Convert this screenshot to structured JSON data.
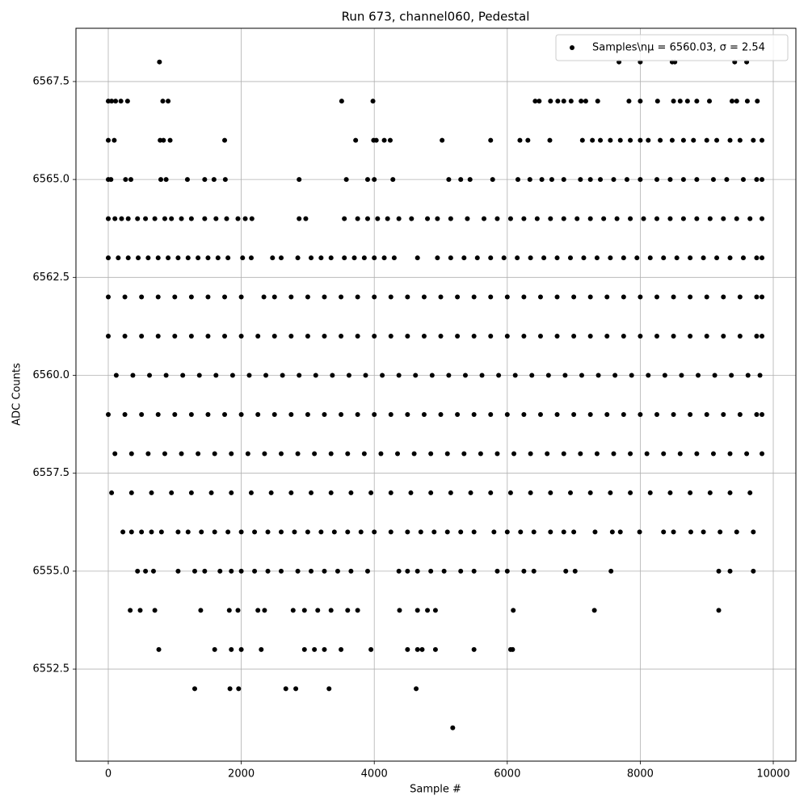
{
  "chart_data": {
    "type": "scatter",
    "title": "Run 673, channel060, Pedestal",
    "xlabel": "Sample #",
    "ylabel": "ADC Counts",
    "xlim": [
      -486,
      10340
    ],
    "ylim": [
      6550.15,
      6568.86
    ],
    "xticks": [
      0,
      2000,
      4000,
      6000,
      8000,
      10000
    ],
    "yticks": [
      6552.5,
      {
        "value": 6555,
        "label": "6555.0"
      },
      6557.5,
      {
        "value": 6560,
        "label": "6560.0"
      },
      6562.5,
      {
        "value": 6565,
        "label": "6565.0"
      },
      6567.5
    ],
    "grid": true,
    "legend": "upper right",
    "series": [
      {
        "name": "Samples\\nμ = 6560.03, σ = 2.54",
        "color": "#000000",
        "x": [
          770,
          7680,
          8000,
          8480,
          8520,
          9420,
          9600,
          0,
          50,
          110,
          190,
          290,
          820,
          900,
          3510,
          3980,
          6420,
          6480,
          6650,
          6760,
          6850,
          6960,
          7110,
          7180,
          7360,
          7830,
          8000,
          8260,
          8500,
          8600,
          8710,
          8850,
          9040,
          9380,
          9450,
          9610,
          9760,
          0,
          90,
          780,
          830,
          930,
          1750,
          3720,
          3990,
          4030,
          4150,
          4240,
          5020,
          5750,
          6190,
          6310,
          6640,
          7130,
          7280,
          7400,
          7550,
          7700,
          7850,
          8000,
          8120,
          8300,
          8480,
          8650,
          8800,
          9000,
          9150,
          9350,
          9500,
          9700,
          9830,
          0,
          40,
          260,
          340,
          790,
          870,
          1190,
          1450,
          1590,
          1760,
          2870,
          3580,
          3900,
          4000,
          4280,
          5120,
          5300,
          5440,
          5780,
          6160,
          6340,
          6520,
          6670,
          6850,
          7100,
          7250,
          7400,
          7600,
          7800,
          8000,
          8250,
          8450,
          8650,
          8850,
          9100,
          9300,
          9550,
          9750,
          9830,
          0,
          100,
          200,
          300,
          440,
          560,
          700,
          850,
          950,
          1100,
          1250,
          1450,
          1620,
          1780,
          1950,
          2060,
          2160,
          2870,
          2970,
          3550,
          3750,
          3900,
          4050,
          4200,
          4370,
          4560,
          4800,
          4950,
          5150,
          5400,
          5650,
          5850,
          6050,
          6250,
          6450,
          6650,
          6850,
          7050,
          7250,
          7450,
          7650,
          7850,
          8050,
          8250,
          8450,
          8650,
          8850,
          9050,
          9250,
          9450,
          9650,
          9830,
          0,
          150,
          300,
          450,
          600,
          750,
          900,
          1050,
          1200,
          1350,
          1500,
          1650,
          1800,
          2020,
          2150,
          2470,
          2600,
          2850,
          3050,
          3200,
          3350,
          3550,
          3700,
          3850,
          4000,
          4150,
          4300,
          4650,
          4950,
          5150,
          5350,
          5550,
          5750,
          5950,
          6150,
          6350,
          6550,
          6750,
          6950,
          7150,
          7350,
          7550,
          7750,
          7950,
          8150,
          8350,
          8550,
          8750,
          8950,
          9150,
          9350,
          9550,
          9750,
          9830,
          0,
          250,
          500,
          750,
          1000,
          1250,
          1500,
          1750,
          2000,
          2340,
          2500,
          2750,
          3000,
          3250,
          3500,
          3750,
          4000,
          4250,
          4500,
          4750,
          5000,
          5250,
          5500,
          5750,
          6000,
          6250,
          6500,
          6750,
          7000,
          7250,
          7500,
          7750,
          8000,
          8250,
          8500,
          8750,
          9000,
          9250,
          9500,
          9750,
          9830,
          0,
          250,
          500,
          750,
          1000,
          1250,
          1500,
          1750,
          2000,
          2250,
          2500,
          2750,
          3000,
          3250,
          3500,
          3750,
          4000,
          4250,
          4500,
          4750,
          5000,
          5250,
          5500,
          5750,
          6000,
          6250,
          6500,
          6750,
          7000,
          7250,
          7500,
          7750,
          8000,
          8250,
          8500,
          8750,
          9000,
          9250,
          9500,
          9750,
          9830,
          120,
          370,
          620,
          870,
          1120,
          1370,
          1620,
          1870,
          2120,
          2370,
          2620,
          2870,
          3120,
          3370,
          3620,
          3870,
          4120,
          4370,
          4620,
          4870,
          5120,
          5370,
          5620,
          5870,
          6120,
          6370,
          6620,
          6870,
          7120,
          7370,
          7620,
          7870,
          8120,
          8370,
          8620,
          8870,
          9120,
          9370,
          9620,
          9800,
          0,
          250,
          500,
          750,
          1000,
          1250,
          1500,
          1750,
          2000,
          2250,
          2500,
          2750,
          3000,
          3250,
          3500,
          3750,
          4000,
          4250,
          4500,
          4750,
          5000,
          5250,
          5500,
          5750,
          6000,
          6250,
          6500,
          6750,
          7000,
          7250,
          7500,
          7750,
          8000,
          8250,
          8500,
          8750,
          9000,
          9250,
          9500,
          9750,
          9830,
          100,
          350,
          600,
          850,
          1100,
          1350,
          1600,
          1850,
          2100,
          2350,
          2600,
          2850,
          3100,
          3350,
          3600,
          3850,
          4100,
          4350,
          4600,
          4850,
          5100,
          5350,
          5600,
          5850,
          6100,
          6350,
          6600,
          6850,
          7100,
          7350,
          7600,
          7850,
          8100,
          8350,
          8600,
          8850,
          9100,
          9350,
          9600,
          9830,
          50,
          350,
          650,
          950,
          1250,
          1550,
          1850,
          2150,
          2450,
          2750,
          3050,
          3350,
          3650,
          3950,
          4250,
          4550,
          4850,
          5150,
          5450,
          5750,
          6050,
          6350,
          6650,
          6950,
          7250,
          7550,
          7850,
          8150,
          8450,
          8750,
          9050,
          9350,
          9650,
          220,
          350,
          500,
          650,
          800,
          1050,
          1200,
          1400,
          1600,
          1800,
          2000,
          2200,
          2400,
          2600,
          2800,
          3000,
          3200,
          3400,
          3600,
          3800,
          4000,
          4250,
          4500,
          4700,
          4900,
          5100,
          5300,
          5500,
          5800,
          6000,
          6200,
          6400,
          6650,
          6850,
          7000,
          7320,
          7580,
          7700,
          7990,
          8350,
          8500,
          8760,
          8950,
          9200,
          9450,
          9700,
          440,
          560,
          680,
          1050,
          1300,
          1450,
          1680,
          1850,
          2000,
          2200,
          2400,
          2600,
          2850,
          3050,
          3250,
          3450,
          3650,
          3900,
          4370,
          4500,
          4650,
          4850,
          5050,
          5300,
          5500,
          5850,
          6000,
          6250,
          6400,
          6880,
          7020,
          7560,
          9180,
          9350,
          9700,
          330,
          480,
          700,
          1390,
          1820,
          1950,
          2250,
          2350,
          2780,
          2950,
          3150,
          3350,
          3600,
          3750,
          4380,
          4650,
          4800,
          4920,
          6090,
          7310,
          9180,
          760,
          1600,
          1850,
          2000,
          2300,
          2950,
          3100,
          3250,
          3500,
          3950,
          4500,
          4650,
          4720,
          4920,
          5500,
          6050,
          6080,
          1300,
          1830,
          1960,
          2670,
          2820,
          3320,
          4630,
          5180
        ],
        "values": [
          6568,
          6568,
          6568,
          6568,
          6568,
          6568,
          6568,
          6567,
          6567,
          6567,
          6567,
          6567,
          6567,
          6567,
          6567,
          6567,
          6567,
          6567,
          6567,
          6567,
          6567,
          6567,
          6567,
          6567,
          6567,
          6567,
          6567,
          6567,
          6567,
          6567,
          6567,
          6567,
          6567,
          6567,
          6567,
          6567,
          6567,
          6566,
          6566,
          6566,
          6566,
          6566,
          6566,
          6566,
          6566,
          6566,
          6566,
          6566,
          6566,
          6566,
          6566,
          6566,
          6566,
          6566,
          6566,
          6566,
          6566,
          6566,
          6566,
          6566,
          6566,
          6566,
          6566,
          6566,
          6566,
          6566,
          6566,
          6566,
          6566,
          6566,
          6566,
          6565,
          6565,
          6565,
          6565,
          6565,
          6565,
          6565,
          6565,
          6565,
          6565,
          6565,
          6565,
          6565,
          6565,
          6565,
          6565,
          6565,
          6565,
          6565,
          6565,
          6565,
          6565,
          6565,
          6565,
          6565,
          6565,
          6565,
          6565,
          6565,
          6565,
          6565,
          6565,
          6565,
          6565,
          6565,
          6565,
          6565,
          6565,
          6565,
          6564,
          6564,
          6564,
          6564,
          6564,
          6564,
          6564,
          6564,
          6564,
          6564,
          6564,
          6564,
          6564,
          6564,
          6564,
          6564,
          6564,
          6564,
          6564,
          6564,
          6564,
          6564,
          6564,
          6564,
          6564,
          6564,
          6564,
          6564,
          6564,
          6564,
          6564,
          6564,
          6564,
          6564,
          6564,
          6564,
          6564,
          6564,
          6564,
          6564,
          6564,
          6564,
          6564,
          6564,
          6564,
          6564,
          6564,
          6564,
          6564,
          6564,
          6564,
          6564,
          6563,
          6563,
          6563,
          6563,
          6563,
          6563,
          6563,
          6563,
          6563,
          6563,
          6563,
          6563,
          6563,
          6563,
          6563,
          6563,
          6563,
          6563,
          6563,
          6563,
          6563,
          6563,
          6563,
          6563,
          6563,
          6563,
          6563,
          6563,
          6563,
          6563,
          6563,
          6563,
          6563,
          6563,
          6563,
          6563,
          6563,
          6563,
          6563,
          6563,
          6563,
          6563,
          6563,
          6563,
          6563,
          6563,
          6563,
          6563,
          6563,
          6563,
          6563,
          6563,
          6563,
          6563,
          6562,
          6562,
          6562,
          6562,
          6562,
          6562,
          6562,
          6562,
          6562,
          6562,
          6562,
          6562,
          6562,
          6562,
          6562,
          6562,
          6562,
          6562,
          6562,
          6562,
          6562,
          6562,
          6562,
          6562,
          6562,
          6562,
          6562,
          6562,
          6562,
          6562,
          6562,
          6562,
          6562,
          6562,
          6562,
          6562,
          6562,
          6562,
          6562,
          6562,
          6562,
          6561,
          6561,
          6561,
          6561,
          6561,
          6561,
          6561,
          6561,
          6561,
          6561,
          6561,
          6561,
          6561,
          6561,
          6561,
          6561,
          6561,
          6561,
          6561,
          6561,
          6561,
          6561,
          6561,
          6561,
          6561,
          6561,
          6561,
          6561,
          6561,
          6561,
          6561,
          6561,
          6561,
          6561,
          6561,
          6561,
          6561,
          6561,
          6561,
          6561,
          6561,
          6560,
          6560,
          6560,
          6560,
          6560,
          6560,
          6560,
          6560,
          6560,
          6560,
          6560,
          6560,
          6560,
          6560,
          6560,
          6560,
          6560,
          6560,
          6560,
          6560,
          6560,
          6560,
          6560,
          6560,
          6560,
          6560,
          6560,
          6560,
          6560,
          6560,
          6560,
          6560,
          6560,
          6560,
          6560,
          6560,
          6560,
          6560,
          6560,
          6560,
          6559,
          6559,
          6559,
          6559,
          6559,
          6559,
          6559,
          6559,
          6559,
          6559,
          6559,
          6559,
          6559,
          6559,
          6559,
          6559,
          6559,
          6559,
          6559,
          6559,
          6559,
          6559,
          6559,
          6559,
          6559,
          6559,
          6559,
          6559,
          6559,
          6559,
          6559,
          6559,
          6559,
          6559,
          6559,
          6559,
          6559,
          6559,
          6559,
          6559,
          6559,
          6558,
          6558,
          6558,
          6558,
          6558,
          6558,
          6558,
          6558,
          6558,
          6558,
          6558,
          6558,
          6558,
          6558,
          6558,
          6558,
          6558,
          6558,
          6558,
          6558,
          6558,
          6558,
          6558,
          6558,
          6558,
          6558,
          6558,
          6558,
          6558,
          6558,
          6558,
          6558,
          6558,
          6558,
          6558,
          6558,
          6558,
          6558,
          6558,
          6558,
          6557,
          6557,
          6557,
          6557,
          6557,
          6557,
          6557,
          6557,
          6557,
          6557,
          6557,
          6557,
          6557,
          6557,
          6557,
          6557,
          6557,
          6557,
          6557,
          6557,
          6557,
          6557,
          6557,
          6557,
          6557,
          6557,
          6557,
          6557,
          6557,
          6557,
          6557,
          6557,
          6557,
          6556,
          6556,
          6556,
          6556,
          6556,
          6556,
          6556,
          6556,
          6556,
          6556,
          6556,
          6556,
          6556,
          6556,
          6556,
          6556,
          6556,
          6556,
          6556,
          6556,
          6556,
          6556,
          6556,
          6556,
          6556,
          6556,
          6556,
          6556,
          6556,
          6556,
          6556,
          6556,
          6556,
          6556,
          6556,
          6556,
          6556,
          6556,
          6556,
          6556,
          6556,
          6556,
          6556,
          6556,
          6556,
          6556,
          6555,
          6555,
          6555,
          6555,
          6555,
          6555,
          6555,
          6555,
          6555,
          6555,
          6555,
          6555,
          6555,
          6555,
          6555,
          6555,
          6555,
          6555,
          6555,
          6555,
          6555,
          6555,
          6555,
          6555,
          6555,
          6555,
          6555,
          6555,
          6555,
          6555,
          6555,
          6555,
          6555,
          6555,
          6555,
          6554,
          6554,
          6554,
          6554,
          6554,
          6554,
          6554,
          6554,
          6554,
          6554,
          6554,
          6554,
          6554,
          6554,
          6554,
          6554,
          6554,
          6554,
          6554,
          6554,
          6554,
          6553,
          6553,
          6553,
          6553,
          6553,
          6553,
          6553,
          6553,
          6553,
          6553,
          6553,
          6553,
          6553,
          6553,
          6553,
          6553,
          6553,
          6552,
          6552,
          6552,
          6552,
          6552,
          6552,
          6552,
          6551
        ]
      }
    ]
  }
}
